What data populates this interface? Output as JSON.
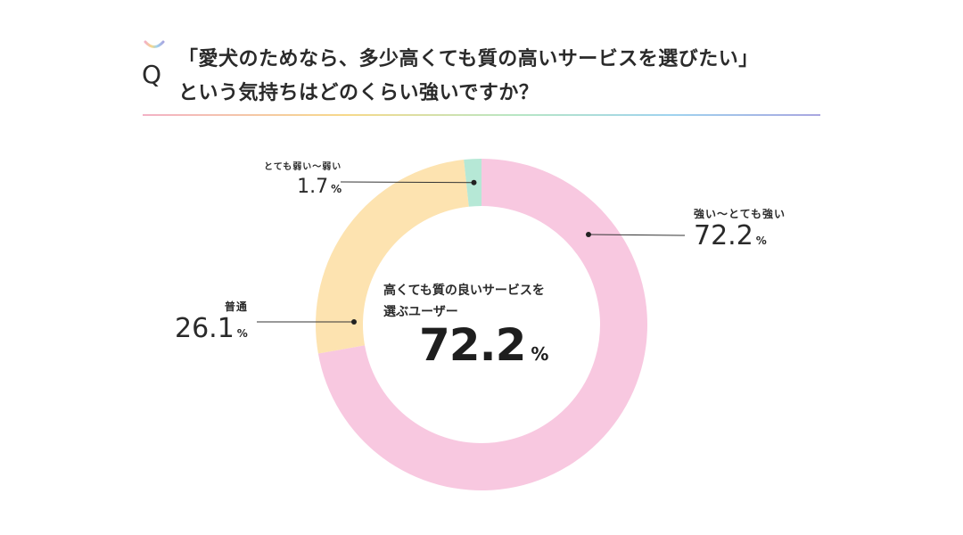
{
  "question": {
    "mark": "Q",
    "line1": "「愛犬のためなら、多少高くても質の高いサービスを選びたい」",
    "line2": "という気持ちはどのくらい強いですか？"
  },
  "center": {
    "line1": "高くても質の良いサービスを",
    "line2": "選ぶユーザー",
    "value": "72.2",
    "unit": "%"
  },
  "colors": {
    "strong": "#f8c8e0",
    "normal": "#fde3b0",
    "weak": "#b6e8d6",
    "rule_gradient": [
      "#f3b2c6",
      "#f6d98a",
      "#b8e6c4",
      "#9fd3ef",
      "#a9a6e0"
    ]
  },
  "chart_data": {
    "type": "pie",
    "donut": true,
    "slices": [
      {
        "name": "強い～とても強い",
        "value": 72.2,
        "label": "72.2",
        "unit": "%"
      },
      {
        "name": "普通",
        "value": 26.1,
        "label": "26.1",
        "unit": "%"
      },
      {
        "name": "とても弱い～弱い",
        "value": 1.7,
        "label": "1.7",
        "unit": "%"
      }
    ]
  }
}
